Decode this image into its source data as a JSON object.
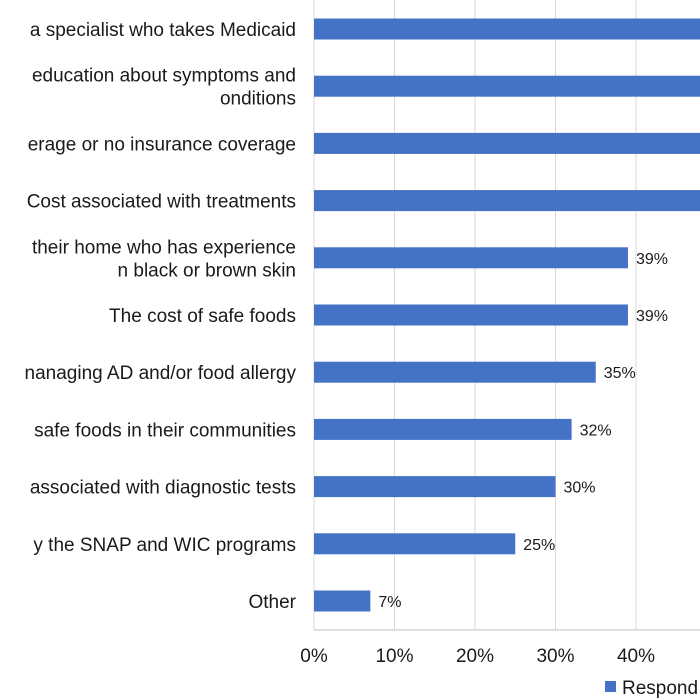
{
  "chart_data": {
    "type": "bar",
    "orientation": "horizontal",
    "categories": [
      [
        "a specialist who takes Medicaid"
      ],
      [
        "education about symptoms and",
        "onditions"
      ],
      [
        "erage or no insurance coverage"
      ],
      [
        "Cost associated with treatments"
      ],
      [
        "their home who has experience",
        "n black or brown skin"
      ],
      [
        "The cost of safe foods"
      ],
      [
        "nanaging AD and/or food allergy"
      ],
      [
        "safe foods in their communities"
      ],
      [
        "associated with diagnostic tests"
      ],
      [
        "y the SNAP and WIC programs"
      ],
      [
        "Other"
      ]
    ],
    "series": [
      {
        "name": "Respond",
        "color": "#4472c4",
        "values": [
          50,
          50,
          50,
          50,
          39,
          39,
          35,
          32,
          30,
          25,
          7
        ],
        "labels": [
          null,
          null,
          null,
          null,
          "39%",
          "39%",
          "35%",
          "32%",
          "30%",
          "25%",
          "7%"
        ]
      }
    ],
    "xlim": [
      0,
      50
    ],
    "xticks": [
      {
        "value": 0,
        "label": "0%"
      },
      {
        "value": 10,
        "label": "10%"
      },
      {
        "value": 20,
        "label": "20%"
      },
      {
        "value": 30,
        "label": "30%"
      },
      {
        "value": 40,
        "label": "40%"
      }
    ],
    "grid": true,
    "legend": "bottom"
  }
}
